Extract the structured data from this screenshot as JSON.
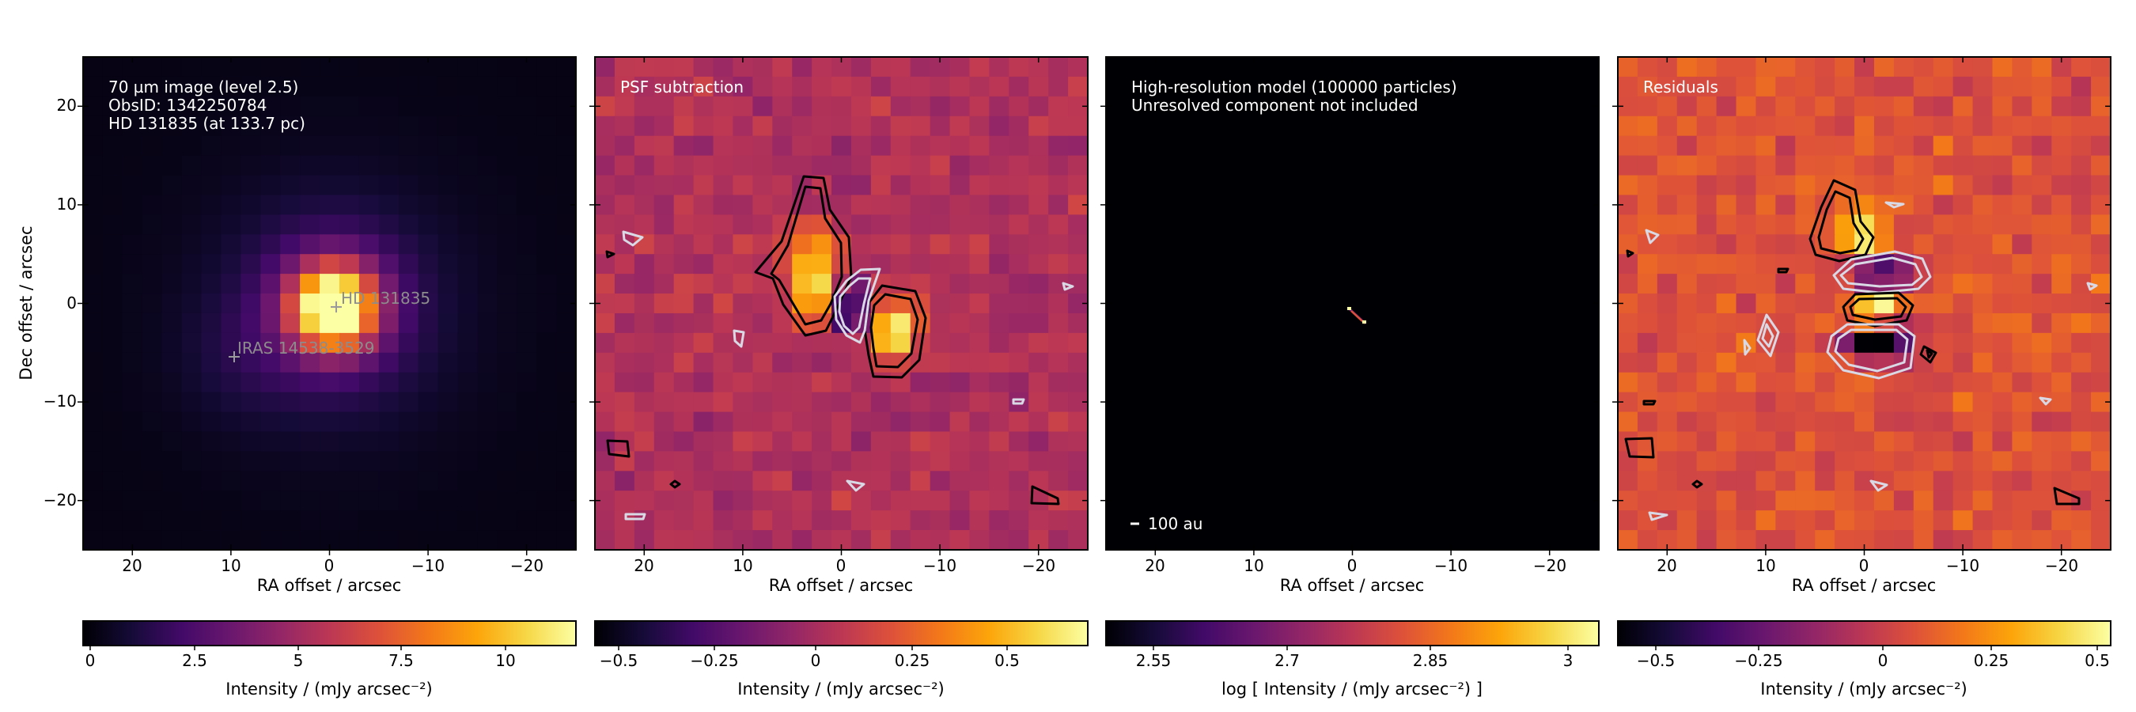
{
  "panels": [
    {
      "id": "obs",
      "texts": [
        "70 µm image (level 2.5)",
        "ObsID: 1342250784",
        "HD 131835 (at 133.7 pc)"
      ],
      "xlabel": "RA offset / arcsec",
      "ylabel": "Dec offset / arcsec",
      "xticks": [
        "20",
        "10",
        "0",
        "−10",
        "−20"
      ],
      "yticks": [
        "20",
        "10",
        "0",
        "−10",
        "−20"
      ],
      "sources": [
        {
          "label": "HD 131835",
          "ra": 0.0,
          "dec": -0.5
        },
        {
          "label": "IRAS 14538-3529",
          "ra": 10.0,
          "dec": -5.5
        }
      ],
      "colorbar": {
        "label": "Intensity / (mJy arcsec⁻²)",
        "ticks": [
          {
            "v": 0,
            "t": "0"
          },
          {
            "v": 2.5,
            "t": "2.5"
          },
          {
            "v": 5,
            "t": "5"
          },
          {
            "v": 7.5,
            "t": "7.5"
          },
          {
            "v": 10,
            "t": "10"
          }
        ],
        "vmin": 0,
        "vmax": 11.8
      }
    },
    {
      "id": "psf",
      "texts": [
        "PSF subtraction"
      ],
      "xlabel": "RA offset / arcsec",
      "xticks": [
        "20",
        "10",
        "0",
        "−10",
        "−20"
      ],
      "colorbar": {
        "label": "Intensity / (mJy arcsec⁻²)",
        "ticks": [
          {
            "v": -0.5,
            "t": "−0.5"
          },
          {
            "v": -0.25,
            "t": "−0.25"
          },
          {
            "v": 0,
            "t": "0"
          },
          {
            "v": 0.25,
            "t": "0.25"
          },
          {
            "v": 0.5,
            "t": "0.5"
          }
        ],
        "vmin": -0.62,
        "vmax": 0.67
      }
    },
    {
      "id": "model",
      "texts": [
        "High-resolution model (100000 particles)",
        "Unresolved component not included"
      ],
      "xlabel": "RA offset / arcsec",
      "xticks": [
        "20",
        "10",
        "0",
        "−10",
        "−20"
      ],
      "scalebar": "100 au",
      "colorbar": {
        "label": "log [ Intensity / (mJy arcsec⁻²) ]",
        "ticks": [
          {
            "v": 2.55,
            "t": "2.55"
          },
          {
            "v": 2.7,
            "t": "2.7"
          },
          {
            "v": 2.85,
            "t": "2.85"
          },
          {
            "v": 3.0,
            "t": "3"
          }
        ],
        "vmin": 2.5,
        "vmax": 3.02
      }
    },
    {
      "id": "resid",
      "texts": [
        "Residuals"
      ],
      "xlabel": "RA offset / arcsec",
      "xticks": [
        "20",
        "10",
        "0",
        "−10",
        "−20"
      ],
      "colorbar": {
        "label": "Intensity / (mJy arcsec⁻²)",
        "ticks": [
          {
            "v": -0.5,
            "t": "−0.5"
          },
          {
            "v": -0.25,
            "t": "−0.25"
          },
          {
            "v": 0,
            "t": "0"
          },
          {
            "v": 0.25,
            "t": "0.25"
          },
          {
            "v": 0.5,
            "t": "0.5"
          }
        ],
        "vmin": -0.62,
        "vmax": 0.55
      }
    }
  ],
  "chart_data": [
    {
      "type": "heatmap",
      "title": "70 µm image (level 2.5)",
      "xlabel": "RA offset / arcsec",
      "ylabel": "Dec offset / arcsec",
      "xlim": [
        25,
        -25
      ],
      "ylim": [
        -25,
        25
      ],
      "colormap": "inferno",
      "peak_intensity": 11.8,
      "peak_position": [
        0,
        0
      ]
    },
    {
      "type": "heatmap",
      "title": "PSF subtraction",
      "xlabel": "RA offset / arcsec",
      "xlim": [
        25,
        -25
      ],
      "ylim": [
        -25,
        25
      ],
      "colormap": "inferno",
      "features": [
        {
          "kind": "positive lobe",
          "ra": 3,
          "dec": 3
        },
        {
          "kind": "positive lobe",
          "ra": -4,
          "dec": -2.5
        },
        {
          "kind": "negative lobe",
          "ra": 0,
          "dec": -0.5
        }
      ]
    },
    {
      "type": "heatmap",
      "title": "High-resolution model (100000 particles)",
      "xlabel": "RA offset / arcsec",
      "xlim": [
        25,
        -25
      ],
      "ylim": [
        -25,
        25
      ],
      "colormap": "inferno",
      "scale": "log"
    },
    {
      "type": "heatmap",
      "title": "Residuals",
      "xlabel": "RA offset / arcsec",
      "xlim": [
        25,
        -25
      ],
      "ylim": [
        -25,
        25
      ],
      "colormap": "inferno",
      "features": [
        {
          "kind": "positive lobe",
          "ra": 2.5,
          "dec": 6.5
        },
        {
          "kind": "negative band",
          "ra": -0.5,
          "dec": 3
        },
        {
          "kind": "positive band",
          "ra": -1,
          "dec": -0.5
        },
        {
          "kind": "negative band",
          "ra": -0.5,
          "dec": -5
        }
      ]
    }
  ]
}
